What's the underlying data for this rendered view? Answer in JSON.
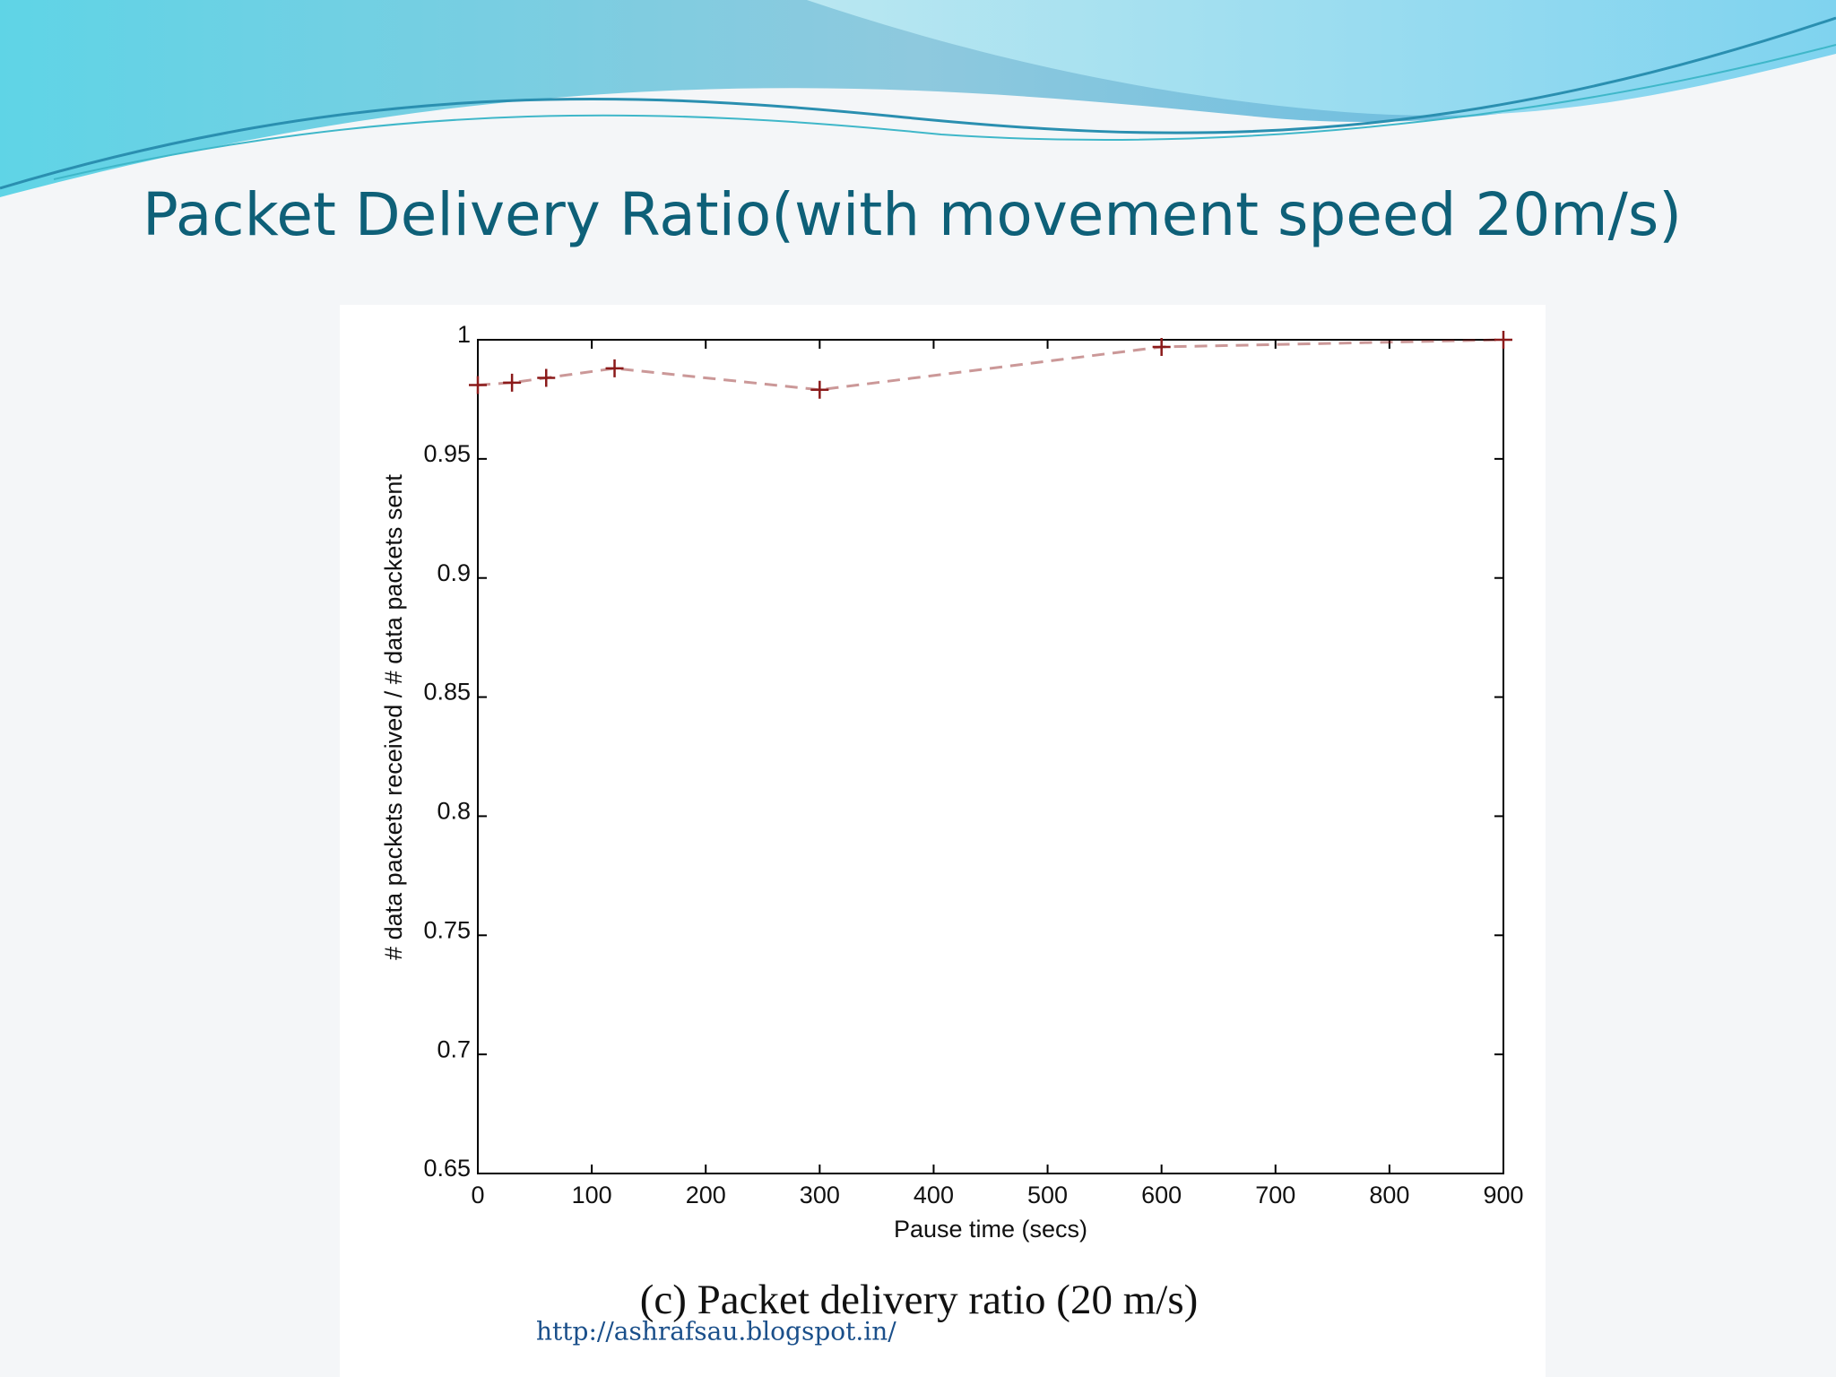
{
  "slide_title": "Packet Delivery Ratio(with movement speed 20m/s)",
  "footer_url": "http://ashrafsau.blogspot.in/",
  "chart_data": {
    "type": "line",
    "caption": "(c) Packet delivery ratio (20 m/s)",
    "xlabel": "Pause time (secs)",
    "ylabel": "# data packets received / # data packets sent",
    "x": [
      0,
      30,
      60,
      120,
      300,
      600,
      900
    ],
    "series": [
      {
        "color": "#8b1a1a",
        "values": [
          0.981,
          0.982,
          0.984,
          0.988,
          0.979,
          0.997,
          1.0
        ]
      }
    ],
    "xlim": [
      0,
      900
    ],
    "xticks": [
      0,
      100,
      200,
      300,
      400,
      500,
      600,
      700,
      800,
      900
    ],
    "ylim": [
      0.65,
      1
    ],
    "yticks": [
      0.65,
      0.7,
      0.75,
      0.8,
      0.85,
      0.9,
      0.95,
      1
    ]
  }
}
